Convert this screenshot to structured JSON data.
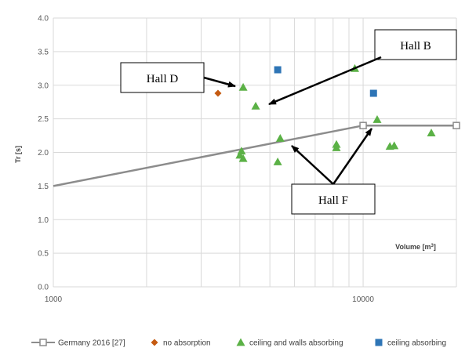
{
  "chart_data": {
    "type": "scatter",
    "title": "",
    "xlabel": "Volume [m³]",
    "xlabel_parts": {
      "base": "Volume [m",
      "sup": "3",
      "close": "]"
    },
    "ylabel": "Tr [s]",
    "xscale": "log",
    "xlim": [
      1000,
      20000
    ],
    "ylim": [
      0,
      4.0
    ],
    "yticks": [
      0.0,
      0.5,
      1.0,
      1.5,
      2.0,
      2.5,
      3.0,
      3.5,
      4.0
    ],
    "ytick_labels": [
      "0.0",
      "0.5",
      "1.0",
      "1.5",
      "2.0",
      "2.5",
      "3.0",
      "3.5",
      "4.0"
    ],
    "xticks": [
      1000,
      10000
    ],
    "xtick_labels": [
      "1000",
      "10000"
    ],
    "grid": true,
    "legend_position": "bottom",
    "series": [
      {
        "name": "Germany 2016 [27]",
        "kind": "line",
        "color": "#8c8c8c",
        "x": [
          1000,
          10000,
          20000
        ],
        "y": [
          1.5,
          2.4,
          2.4
        ],
        "marker_x": [
          10000,
          20000
        ]
      },
      {
        "name": "no absorption",
        "kind": "diamond",
        "color": "#c55a11",
        "x": [
          3400
        ],
        "y": [
          2.88
        ]
      },
      {
        "name": "ceiling and walls absorbing",
        "kind": "triangle",
        "color": "#5bb146",
        "x": [
          4100,
          4500,
          5400,
          4000,
          4050,
          4100,
          5300,
          8200,
          8200,
          9400,
          11100,
          12200,
          12600,
          16600
        ],
        "y": [
          2.97,
          2.69,
          2.21,
          1.96,
          2.02,
          1.91,
          1.86,
          2.12,
          2.07,
          3.25,
          2.49,
          2.09,
          2.1,
          2.29
        ]
      },
      {
        "name": "ceiling absorbing",
        "kind": "square",
        "color": "#2e75b6",
        "x": [
          5300,
          10800
        ],
        "y": [
          3.23,
          2.88
        ]
      }
    ],
    "annotations": [
      {
        "text": "Hall B",
        "arrows_to": [
          [
            4500,
            2.69
          ]
        ]
      },
      {
        "text": "Hall D",
        "arrows_to": [
          [
            4100,
            2.97
          ]
        ]
      },
      {
        "text": "Hall F",
        "arrows_to": [
          [
            5400,
            2.21
          ],
          [
            11100,
            2.49
          ]
        ]
      }
    ]
  }
}
